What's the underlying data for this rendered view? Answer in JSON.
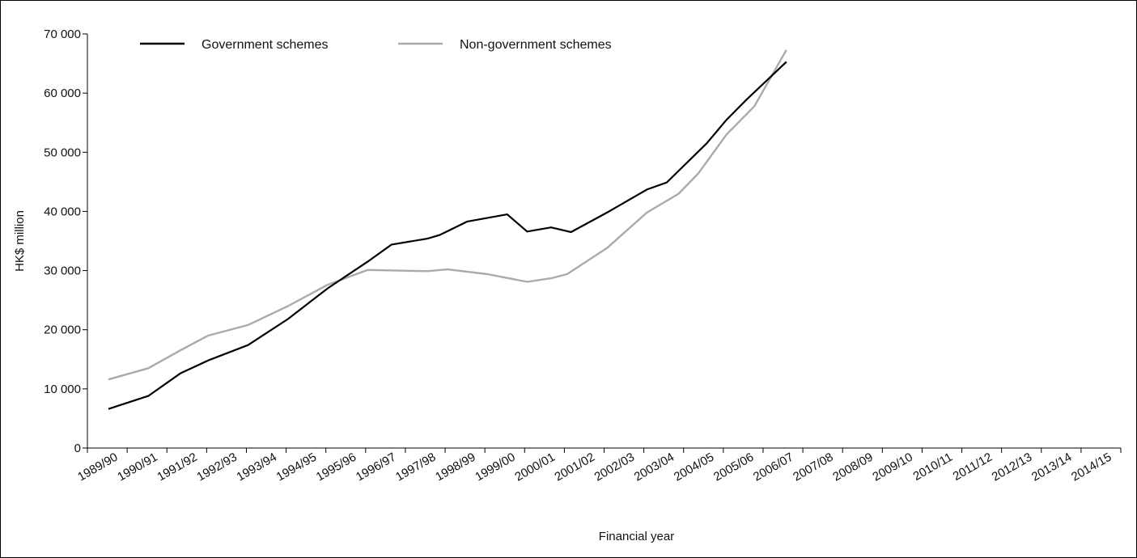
{
  "chart_data": {
    "type": "line",
    "title": "",
    "xlabel": "Financial year",
    "ylabel": "HK$ million",
    "ylim": [
      0,
      70000
    ],
    "yticks": [
      0,
      10000,
      20000,
      30000,
      40000,
      50000,
      60000,
      70000
    ],
    "ytick_labels": [
      "0",
      "10 000",
      "20 000",
      "30 000",
      "40 000",
      "50 000",
      "60 000",
      "70 000"
    ],
    "grid": false,
    "legend_position": "top-left",
    "categories": [
      "1989/90",
      "1990/91",
      "1991/92",
      "1992/93",
      "1993/94",
      "1994/95",
      "1995/96",
      "1996/97",
      "1997/98",
      "1998/99",
      "1999/00",
      "2000/01",
      "2001/02",
      "2002/03",
      "2003/04",
      "2004/05",
      "2005/06",
      "2006/07",
      "2007/08",
      "2008/09",
      "2009/10",
      "2010/11",
      "2011/12",
      "2012/13",
      "2013/14",
      "2014/15"
    ],
    "x": [
      1989.5,
      1990.5,
      1991.3,
      1992.0,
      1993.0,
      1994.0,
      1995.0,
      1996.0,
      1997.0,
      1997.5,
      1998.0,
      1998.5,
      1999.5,
      2000.0,
      2000.5,
      2001.0,
      2001.5,
      2002.0,
      2002.5,
      2003.0,
      2003.5,
      2004.0,
      2004.5,
      2005.0,
      2005.5,
      2006.0,
      2006.5,
      2007.0,
      2008.0,
      2009.0,
      2009.5,
      2010.0,
      2010.5,
      2011.0,
      2011.5,
      2012.0,
      2012.5,
      2013.0,
      2013.5,
      2014.0,
      2014.5
    ],
    "series": [
      {
        "name": "Government schemes",
        "color": "#000000",
        "points": [
          [
            1989.5,
            6600
          ],
          [
            1990.5,
            8800
          ],
          [
            1991.3,
            12600
          ],
          [
            1992.0,
            14800
          ],
          [
            1993.0,
            17400
          ],
          [
            1994.0,
            21800
          ],
          [
            1995.0,
            27000
          ],
          [
            1996.0,
            31500
          ],
          [
            1996.6,
            34400
          ],
          [
            1997.5,
            35400
          ],
          [
            1997.8,
            36000
          ],
          [
            1998.5,
            38300
          ],
          [
            1999.5,
            39500
          ],
          [
            2000.0,
            36600
          ],
          [
            2000.6,
            37300
          ],
          [
            2001.1,
            36500
          ],
          [
            2002.0,
            39800
          ],
          [
            2003.0,
            43700
          ],
          [
            2003.5,
            44900
          ],
          [
            2004.5,
            51500
          ],
          [
            2005.0,
            55500
          ],
          [
            2005.5,
            58900
          ],
          [
            2006.5,
            65300
          ]
        ]
      },
      {
        "name": "Non-government schemes",
        "color": "#aaaaaa",
        "points": [
          [
            1989.5,
            11600
          ],
          [
            1990.5,
            13500
          ],
          [
            1991.3,
            16500
          ],
          [
            1992.0,
            19000
          ],
          [
            1993.0,
            20800
          ],
          [
            1994.0,
            24000
          ],
          [
            1995.0,
            27600
          ],
          [
            1996.0,
            30100
          ],
          [
            1997.5,
            29900
          ],
          [
            1998.0,
            30200
          ],
          [
            1999.0,
            29400
          ],
          [
            2000.0,
            28100
          ],
          [
            2000.6,
            28700
          ],
          [
            2001.0,
            29400
          ],
          [
            2002.0,
            33800
          ],
          [
            2003.0,
            39800
          ],
          [
            2003.8,
            43000
          ],
          [
            2004.3,
            46500
          ],
          [
            2005.0,
            53000
          ],
          [
            2005.7,
            57800
          ],
          [
            2006.5,
            67300
          ]
        ]
      }
    ]
  }
}
